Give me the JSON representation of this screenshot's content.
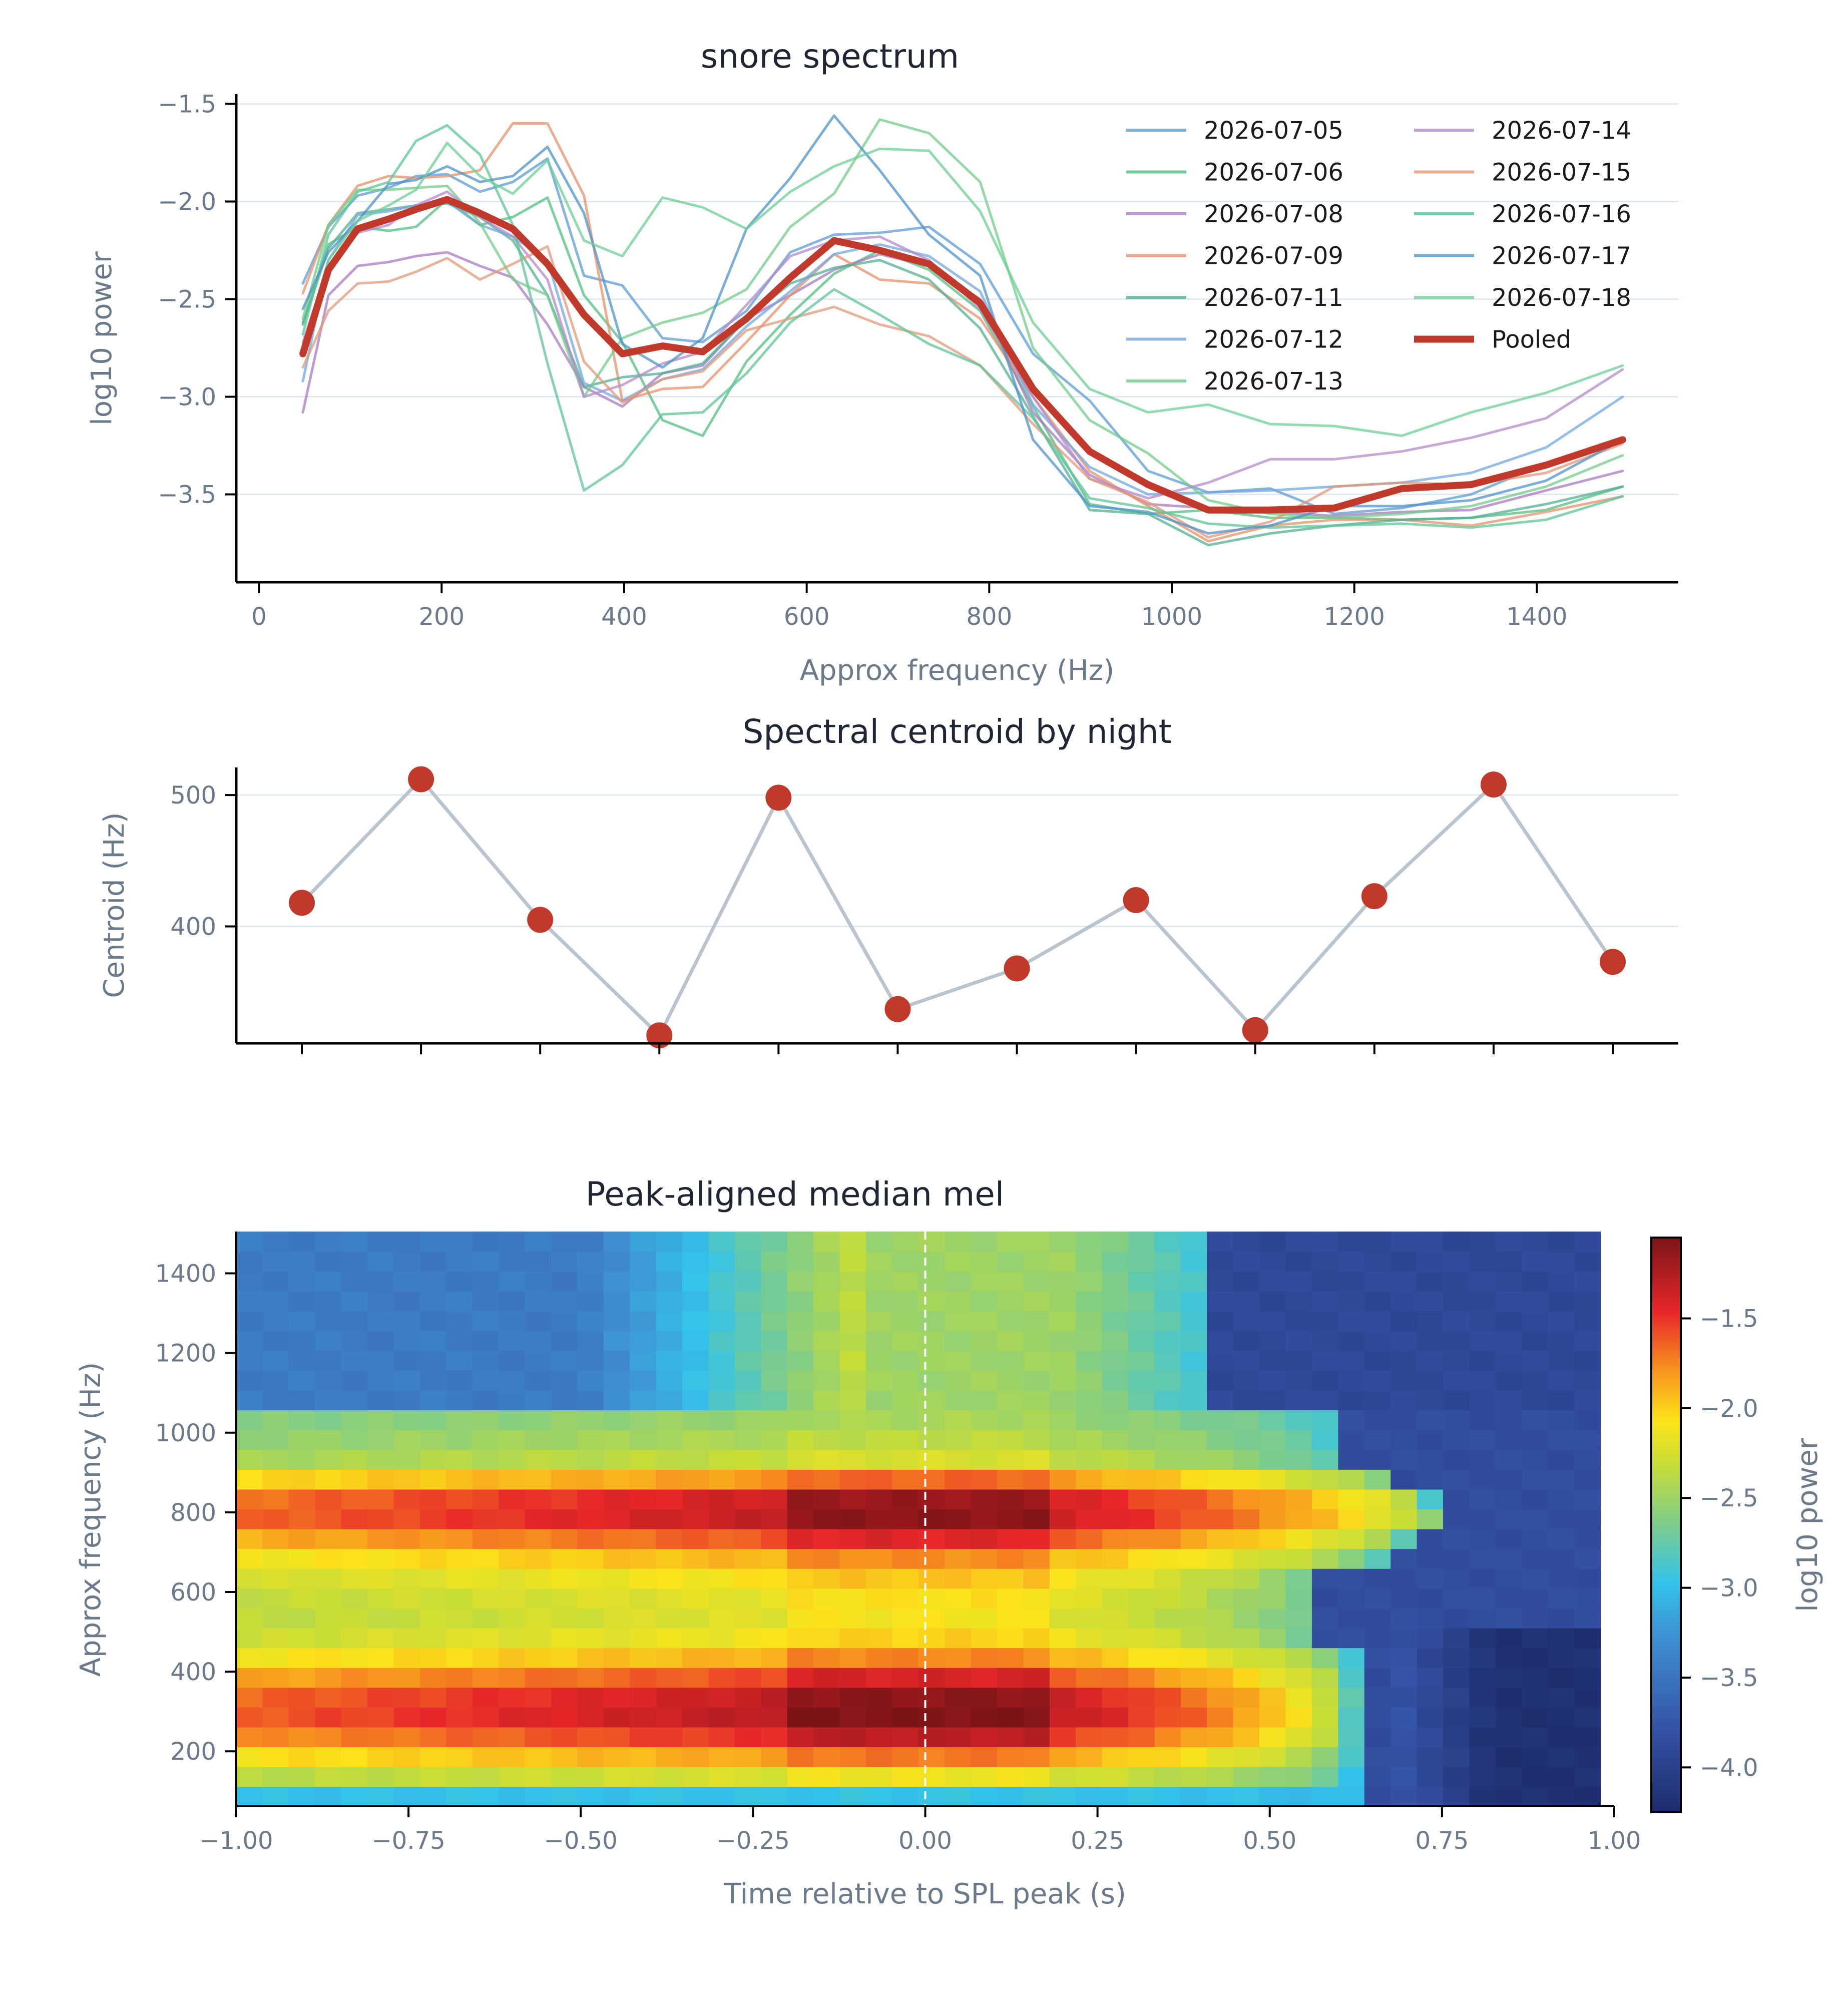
{
  "chart_data": [
    {
      "type": "line",
      "title": "snore spectrum",
      "xlabel": "Approx frequency (Hz)",
      "ylabel": "log10 power",
      "xlim": [
        -25,
        1555
      ],
      "ylim": [
        -3.95,
        -1.45
      ],
      "xticks": [
        0,
        200,
        400,
        600,
        800,
        1000,
        1200,
        1400
      ],
      "xtick_labels": [
        "0",
        "200",
        "400",
        "600",
        "800",
        "1000",
        "1200",
        "1400"
      ],
      "yticks": [
        -1.5,
        -2.0,
        -2.5,
        -3.0,
        -3.5
      ],
      "ytick_labels": [
        "−1.5",
        "−2.0",
        "−2.5",
        "−3.0",
        "−3.5"
      ],
      "grid": "horizontal",
      "legend_position": "top-right",
      "x": [
        48,
        76,
        108,
        142,
        172,
        206,
        242,
        278,
        316,
        356,
        398,
        442,
        486,
        534,
        582,
        630,
        680,
        734,
        790,
        848,
        910,
        974,
        1040,
        1108,
        1178,
        1252,
        1328,
        1410,
        1494
      ],
      "series": [
        {
          "name": "2026-07-05",
          "color": "#5b9bd5",
          "values": [
            -2.42,
            -2.13,
            -1.97,
            -1.93,
            -1.87,
            -1.86,
            -1.95,
            -1.9,
            -1.78,
            -2.38,
            -2.43,
            -2.7,
            -2.72,
            -2.56,
            -2.26,
            -2.17,
            -2.16,
            -2.13,
            -2.32,
            -2.78,
            -3.02,
            -3.38,
            -3.49,
            -3.47,
            -3.6,
            -3.57,
            -3.5,
            -3.34,
            -3.23
          ]
        },
        {
          "name": "2026-07-06",
          "color": "#52bf80",
          "values": [
            -2.62,
            -2.22,
            -2.13,
            -2.15,
            -2.13,
            -1.99,
            -2.12,
            -2.08,
            -1.98,
            -2.48,
            -2.72,
            -3.12,
            -3.2,
            -2.82,
            -2.58,
            -2.37,
            -2.25,
            -2.35,
            -2.56,
            -3.05,
            -3.55,
            -3.6,
            -3.58,
            -3.62,
            -3.62,
            -3.63,
            -3.62,
            -3.58,
            -3.46
          ]
        },
        {
          "name": "2026-07-08",
          "color": "#a87ac0",
          "values": [
            -3.08,
            -2.48,
            -2.33,
            -2.31,
            -2.28,
            -2.26,
            -2.33,
            -2.39,
            -2.63,
            -2.95,
            -3.05,
            -2.88,
            -2.84,
            -2.6,
            -2.48,
            -2.35,
            -2.27,
            -2.33,
            -2.5,
            -3.08,
            -3.4,
            -3.55,
            -3.57,
            -3.59,
            -3.61,
            -3.59,
            -3.58,
            -3.48,
            -3.38
          ]
        },
        {
          "name": "2026-07-09",
          "color": "#e8906a",
          "values": [
            -2.47,
            -2.12,
            -1.92,
            -1.87,
            -1.88,
            -1.87,
            -1.84,
            -1.6,
            -1.6,
            -1.97,
            -3.02,
            -2.96,
            -2.95,
            -2.72,
            -2.48,
            -2.27,
            -2.4,
            -2.42,
            -2.6,
            -3.0,
            -3.38,
            -3.56,
            -3.74,
            -3.66,
            -3.63,
            -3.63,
            -3.66,
            -3.59,
            -3.51
          ]
        },
        {
          "name": "2026-07-11",
          "color": "#52b094",
          "values": [
            -2.63,
            -2.24,
            -2.06,
            -2.04,
            -2.02,
            -2.01,
            -2.08,
            -2.2,
            -2.48,
            -2.95,
            -2.9,
            -2.88,
            -2.83,
            -2.6,
            -2.42,
            -2.34,
            -2.3,
            -2.4,
            -2.65,
            -3.1,
            -3.58,
            -3.6,
            -3.76,
            -3.7,
            -3.66,
            -3.63,
            -3.62,
            -3.55,
            -3.46
          ]
        },
        {
          "name": "2026-07-12",
          "color": "#72a8df",
          "values": [
            -2.92,
            -2.3,
            -2.07,
            -2.05,
            -2.02,
            -2.0,
            -2.12,
            -2.18,
            -2.3,
            -2.93,
            -3.02,
            -2.91,
            -2.86,
            -2.64,
            -2.46,
            -2.27,
            -2.22,
            -2.28,
            -2.46,
            -3.04,
            -3.36,
            -3.5,
            -3.49,
            -3.48,
            -3.46,
            -3.44,
            -3.39,
            -3.26,
            -3.0
          ]
        },
        {
          "name": "2026-07-13",
          "color": "#72cc8a",
          "values": [
            -2.6,
            -2.12,
            -1.94,
            -1.94,
            -1.93,
            -1.92,
            -2.11,
            -2.4,
            -2.48,
            -3.0,
            -2.7,
            -2.62,
            -2.57,
            -2.45,
            -2.13,
            -1.96,
            -1.58,
            -1.65,
            -1.9,
            -2.75,
            -3.12,
            -3.29,
            -3.53,
            -3.6,
            -3.62,
            -3.6,
            -3.56,
            -3.46,
            -3.3
          ]
        },
        {
          "name": "2026-07-14",
          "color": "#b48ac9",
          "values": [
            -2.72,
            -2.33,
            -2.16,
            -2.12,
            -2.02,
            -1.95,
            -2.08,
            -2.18,
            -2.4,
            -3.0,
            -2.94,
            -2.83,
            -2.77,
            -2.53,
            -2.28,
            -2.2,
            -2.18,
            -2.3,
            -2.55,
            -3.0,
            -3.42,
            -3.52,
            -3.44,
            -3.32,
            -3.32,
            -3.28,
            -3.21,
            -3.11,
            -2.86
          ]
        },
        {
          "name": "2026-07-15",
          "color": "#e09a78",
          "values": [
            -2.85,
            -2.56,
            -2.42,
            -2.41,
            -2.36,
            -2.29,
            -2.4,
            -2.32,
            -2.23,
            -2.82,
            -3.03,
            -2.91,
            -2.87,
            -2.66,
            -2.6,
            -2.54,
            -2.63,
            -2.69,
            -2.84,
            -3.14,
            -3.42,
            -3.54,
            -3.72,
            -3.64,
            -3.46,
            -3.44,
            -3.45,
            -3.39,
            -3.24
          ]
        },
        {
          "name": "2026-07-16",
          "color": "#5dc498",
          "values": [
            -2.68,
            -2.17,
            -1.95,
            -1.9,
            -1.69,
            -1.61,
            -1.76,
            -2.12,
            -2.83,
            -3.48,
            -3.35,
            -3.09,
            -3.08,
            -2.88,
            -2.62,
            -2.45,
            -2.58,
            -2.73,
            -2.84,
            -3.11,
            -3.52,
            -3.57,
            -3.65,
            -3.67,
            -3.66,
            -3.65,
            -3.67,
            -3.63,
            -3.51
          ]
        },
        {
          "name": "2026-07-17",
          "color": "#4f93c9",
          "values": [
            -2.55,
            -2.26,
            -2.1,
            -1.91,
            -1.89,
            -1.82,
            -1.9,
            -1.87,
            -1.72,
            -2.06,
            -2.73,
            -2.85,
            -2.7,
            -2.14,
            -1.88,
            -1.56,
            -1.84,
            -2.17,
            -2.38,
            -3.22,
            -3.56,
            -3.59,
            -3.7,
            -3.66,
            -3.56,
            -3.56,
            -3.53,
            -3.43,
            -3.22
          ]
        },
        {
          "name": "2026-07-18",
          "color": "#6ccf96",
          "values": [
            -2.75,
            -2.3,
            -2.1,
            -2.02,
            -1.94,
            -1.7,
            -1.87,
            -1.96,
            -1.79,
            -2.2,
            -2.28,
            -1.98,
            -2.03,
            -2.14,
            -1.95,
            -1.82,
            -1.73,
            -1.74,
            -2.05,
            -2.62,
            -2.96,
            -3.08,
            -3.04,
            -3.14,
            -3.15,
            -3.2,
            -3.08,
            -2.98,
            -2.84
          ]
        },
        {
          "name": "Pooled",
          "color": "#c0392b",
          "values": [
            -2.78,
            -2.35,
            -2.14,
            -2.09,
            -2.04,
            -1.99,
            -2.06,
            -2.14,
            -2.32,
            -2.58,
            -2.78,
            -2.74,
            -2.77,
            -2.6,
            -2.39,
            -2.2,
            -2.25,
            -2.32,
            -2.52,
            -2.96,
            -3.28,
            -3.45,
            -3.58,
            -3.58,
            -3.57,
            -3.47,
            -3.45,
            -3.35,
            -3.22
          ]
        }
      ]
    },
    {
      "type": "scatter",
      "title": "Spectral centroid by night",
      "ylabel": "Centroid (Hz)",
      "ylim": [
        311,
        521
      ],
      "yticks": [
        400,
        500
      ],
      "ytick_labels": [
        "400",
        "500"
      ],
      "grid": "horizontal",
      "point_color": "#c0392b",
      "line_color": "#b9c4cf",
      "values": [
        418,
        512,
        405,
        317,
        498,
        337,
        368,
        420,
        321,
        423,
        508,
        373
      ]
    },
    {
      "type": "heatmap",
      "title": "Peak-aligned median mel",
      "xlabel": "Time relative to SPL peak (s)",
      "ylabel": "Approx frequency (Hz)",
      "xlim": [
        -1.0,
        1.0
      ],
      "ylim": [
        62,
        1505
      ],
      "xticks": [
        -1.0,
        -0.75,
        -0.5,
        -0.25,
        0.0,
        0.25,
        0.5,
        0.75,
        1.0
      ],
      "xtick_labels": [
        "−1.00",
        "−0.75",
        "−0.50",
        "−0.25",
        "0.00",
        "0.25",
        "0.50",
        "0.75",
        "1.00"
      ],
      "yticks": [
        200,
        400,
        600,
        800,
        1000,
        1200,
        1400
      ],
      "ytick_labels": [
        "200",
        "400",
        "600",
        "800",
        "1000",
        "1200",
        "1400"
      ],
      "peak_line_x": 0.0,
      "data_range": [
        -1.0,
        0.98
      ],
      "colorbar": {
        "label": "log10 power",
        "vmin": -4.25,
        "vmax": -1.05,
        "ticks": [
          -1.5,
          -2.0,
          -2.5,
          -3.0,
          -3.5,
          -4.0
        ],
        "tick_labels": [
          "−1.5",
          "−2.0",
          "−2.5",
          "−3.0",
          "−3.5",
          "−4.0"
        ]
      }
    }
  ]
}
